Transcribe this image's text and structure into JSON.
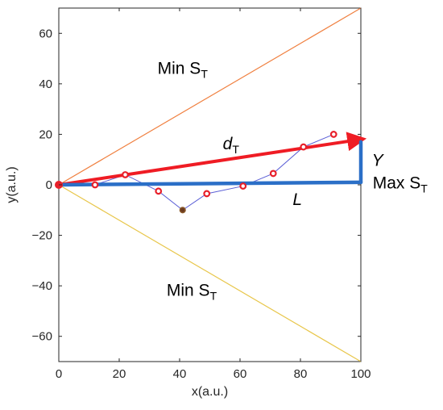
{
  "chart_data": {
    "type": "line",
    "xlabel": "x(a.u.)",
    "ylabel": "y(a.u.)",
    "xlim": [
      0,
      100
    ],
    "ylim": [
      -70,
      70
    ],
    "xticks": [
      0,
      20,
      40,
      60,
      80,
      100
    ],
    "yticks": [
      -60,
      -40,
      -20,
      0,
      20,
      40,
      60
    ],
    "grid": false,
    "series": [
      {
        "style": "points-with-line",
        "color": "#e8202a",
        "line_color": "#5b5fd6",
        "points": [
          {
            "x": 0,
            "y": 0
          },
          {
            "x": 12,
            "y": 0
          },
          {
            "x": 22,
            "y": 4
          },
          {
            "x": 33,
            "y": -2.5
          },
          {
            "x": 41,
            "y": -10
          },
          {
            "x": 49,
            "y": -3.5
          },
          {
            "x": 61,
            "y": -0.5
          },
          {
            "x": 71,
            "y": 4.5
          },
          {
            "x": 81,
            "y": 15
          },
          {
            "x": 91,
            "y": 20
          }
        ]
      }
    ],
    "boundaries": [
      {
        "color": "#f08040",
        "from": [
          0,
          0
        ],
        "to": [
          100,
          70
        ]
      },
      {
        "color": "#e8c64a",
        "from": [
          0,
          0
        ],
        "to": [
          100,
          -70
        ]
      }
    ],
    "vectors": [
      {
        "label": "d",
        "sub": "T",
        "color": "#ef1c24",
        "from": [
          0,
          0
        ],
        "to": [
          100,
          18
        ],
        "label_at": [
          57,
          14
        ]
      },
      {
        "label": "L",
        "color": "#2b6fc7",
        "from": [
          0,
          0
        ],
        "to": [
          100,
          1
        ],
        "label_at": [
          79,
          -8
        ]
      },
      {
        "label": "Y",
        "color": "#2b6fc7",
        "from": [
          100,
          1
        ],
        "to": [
          100,
          17
        ],
        "label_at": [
          105.5,
          7.5
        ]
      }
    ],
    "annotations": [
      {
        "text": "Min S",
        "sub": "T",
        "at": [
          41,
          44
        ]
      },
      {
        "text": "Max S",
        "sub": "T",
        "at": [
          113,
          -1.5
        ]
      },
      {
        "text": "Min S",
        "sub": "T",
        "at": [
          44,
          -44
        ]
      }
    ]
  }
}
